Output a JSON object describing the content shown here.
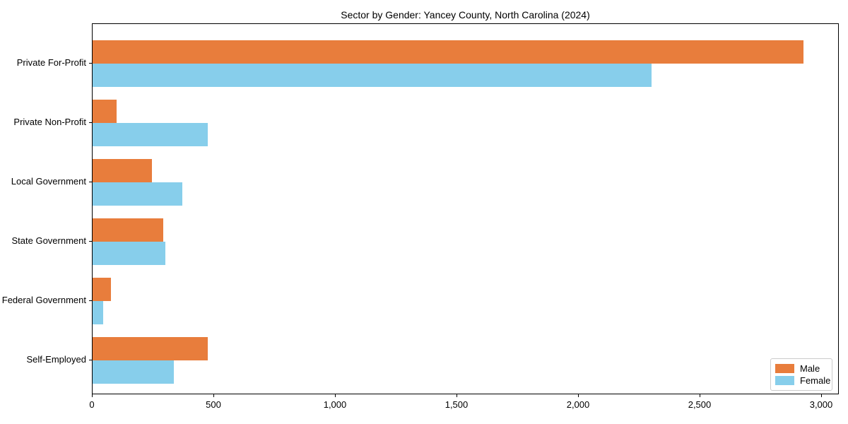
{
  "chart_data": {
    "type": "bar",
    "orientation": "horizontal",
    "title": "Sector by Gender: Yancey County, North Carolina (2024)",
    "xlabel": "",
    "ylabel": "",
    "categories": [
      "Private For-Profit",
      "Private Non-Profit",
      "Local Government",
      "State Government",
      "Federal Government",
      "Self-Employed"
    ],
    "series": [
      {
        "name": "Male",
        "color": "#E87D3C",
        "values": [
          2925,
          100,
          245,
          290,
          75,
          475
        ]
      },
      {
        "name": "Female",
        "color": "#87CEEB",
        "values": [
          2300,
          475,
          370,
          300,
          45,
          335
        ]
      }
    ],
    "xlim": [
      0,
      3073
    ],
    "x_ticks": [
      0,
      500,
      1000,
      1500,
      2000,
      2500,
      3000
    ],
    "x_tick_labels": [
      "0",
      "500",
      "1,000",
      "1,500",
      "2,000",
      "2,500",
      "3,000"
    ],
    "grid": false,
    "legend_position": "lower-right"
  }
}
